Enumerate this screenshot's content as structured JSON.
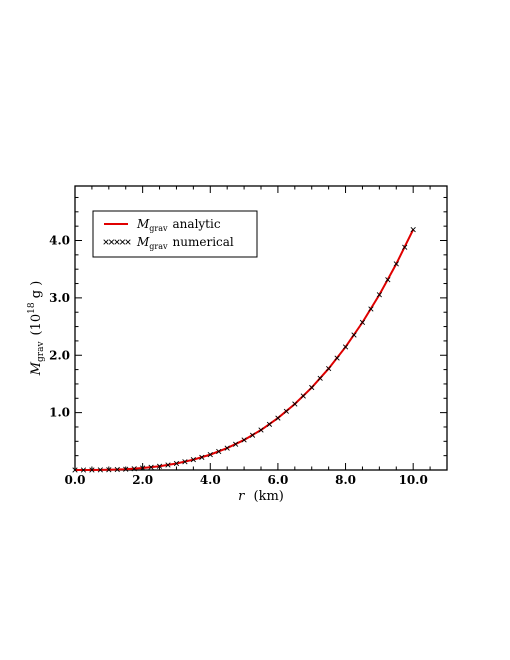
{
  "chart_data": {
    "type": "line",
    "title": "",
    "xlabel": {
      "symbol": "r",
      "unit": "(km)"
    },
    "ylabel": {
      "symbol": "M",
      "subscript": "grav",
      "unit_prefix": "(10",
      "unit_exponent": "18",
      "unit_suffix": " g )"
    },
    "xlim": [
      0,
      11
    ],
    "ylim": [
      0,
      4.95
    ],
    "xticks": [
      0,
      2,
      4,
      6,
      8,
      10
    ],
    "xtick_labels": [
      "0.0",
      "2.0",
      "4.0",
      "6.0",
      "8.0",
      "10.0"
    ],
    "yticks": [
      1,
      2,
      3,
      4
    ],
    "ytick_labels": [
      "1.0",
      "2.0",
      "3.0",
      "4.0"
    ],
    "grid": false,
    "legend_position": "top-left",
    "series": [
      {
        "name": "analytic",
        "symbol": "M",
        "subscript": "grav",
        "color": "#e00000",
        "style": "solid",
        "x": [
          0,
          0.5,
          1,
          1.5,
          2,
          2.5,
          3,
          3.5,
          4,
          4.5,
          5,
          5.5,
          6,
          6.5,
          7,
          7.5,
          8,
          8.5,
          9,
          9.5,
          10
        ],
        "y": [
          0.0,
          0.0005,
          0.004,
          0.014,
          0.034,
          0.065,
          0.113,
          0.18,
          0.268,
          0.382,
          0.524,
          0.697,
          0.905,
          1.151,
          1.437,
          1.768,
          2.145,
          2.573,
          3.054,
          3.592,
          4.19
        ]
      },
      {
        "name": "numerical",
        "symbol": "M",
        "subscript": "grav",
        "color": "#000000",
        "style": "crosses",
        "x": [
          0,
          0.25,
          0.5,
          0.75,
          1,
          1.25,
          1.5,
          1.75,
          2,
          2.25,
          2.5,
          2.75,
          3,
          3.25,
          3.5,
          3.75,
          4,
          4.25,
          4.5,
          4.75,
          5,
          5.25,
          5.5,
          5.75,
          6,
          6.25,
          6.5,
          6.75,
          7,
          7.25,
          7.5,
          7.75,
          8,
          8.25,
          8.5,
          8.75,
          9,
          9.25,
          9.5,
          9.75,
          10
        ],
        "y": [
          0.0,
          0.0001,
          0.0005,
          0.0018,
          0.004,
          0.0082,
          0.014,
          0.0224,
          0.034,
          0.048,
          0.065,
          0.087,
          0.113,
          0.144,
          0.18,
          0.221,
          0.268,
          0.322,
          0.382,
          0.449,
          0.524,
          0.606,
          0.697,
          0.796,
          0.905,
          1.023,
          1.151,
          1.29,
          1.437,
          1.598,
          1.768,
          1.951,
          2.145,
          2.353,
          2.573,
          2.806,
          3.054,
          3.316,
          3.592,
          3.883,
          4.19
        ]
      }
    ]
  }
}
